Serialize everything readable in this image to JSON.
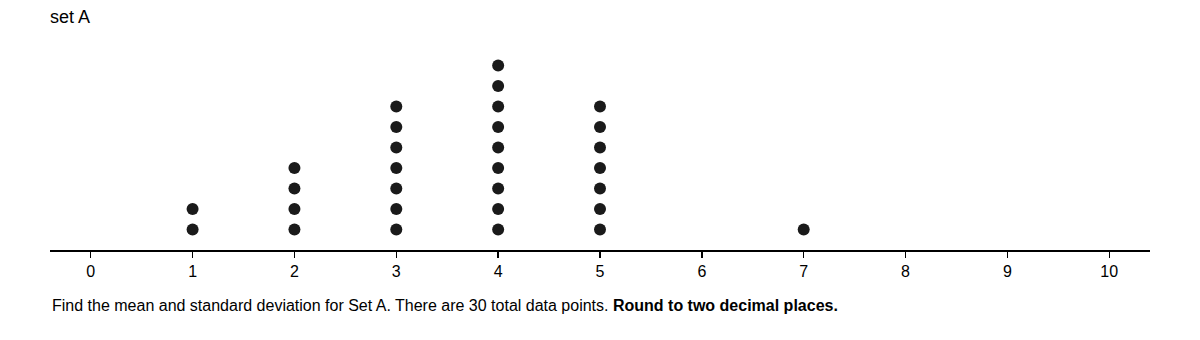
{
  "chart_data": {
    "type": "dot_plot",
    "title": "set A",
    "x": [
      1,
      2,
      3,
      4,
      5,
      7
    ],
    "values": [
      2,
      4,
      7,
      9,
      7,
      1
    ],
    "color": "#1a1a1a",
    "marker": "circle",
    "xlim": [
      -0.4,
      10.4
    ],
    "xticks": [
      0,
      1,
      2,
      3,
      4,
      5,
      6,
      7,
      8,
      9,
      10
    ],
    "grid": false,
    "legend": false,
    "tick_labels": "x",
    "annotations": [
      {
        "text": "Find the mean and standard deviation for Set A. There are 30 total data points.",
        "weight": "normal"
      },
      {
        "text": "Round to two decimal places.",
        "weight": "bold"
      }
    ]
  }
}
